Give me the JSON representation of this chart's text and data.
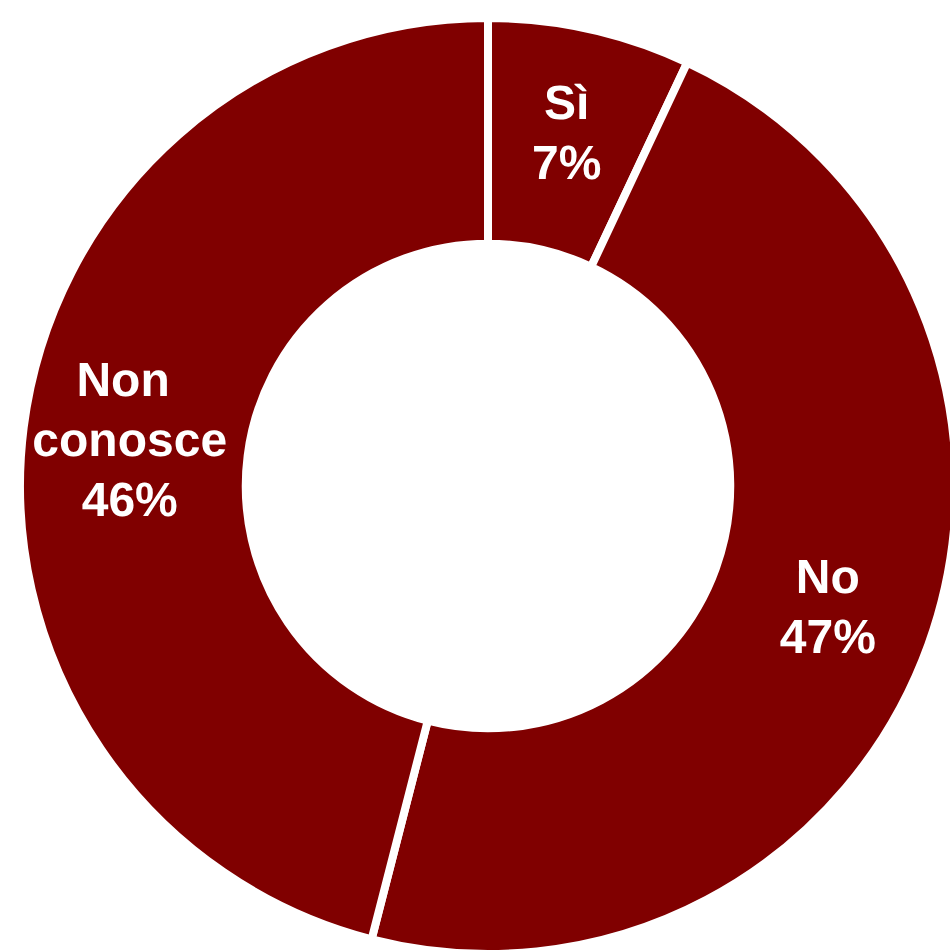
{
  "chart_data": {
    "type": "donut",
    "categories": [
      "Sì",
      "No",
      "Non conosce"
    ],
    "values": [
      7,
      47,
      46
    ],
    "value_labels": [
      "7%",
      "47%",
      "46%"
    ],
    "colors": [
      "#800000",
      "#800000",
      "#800000"
    ]
  }
}
